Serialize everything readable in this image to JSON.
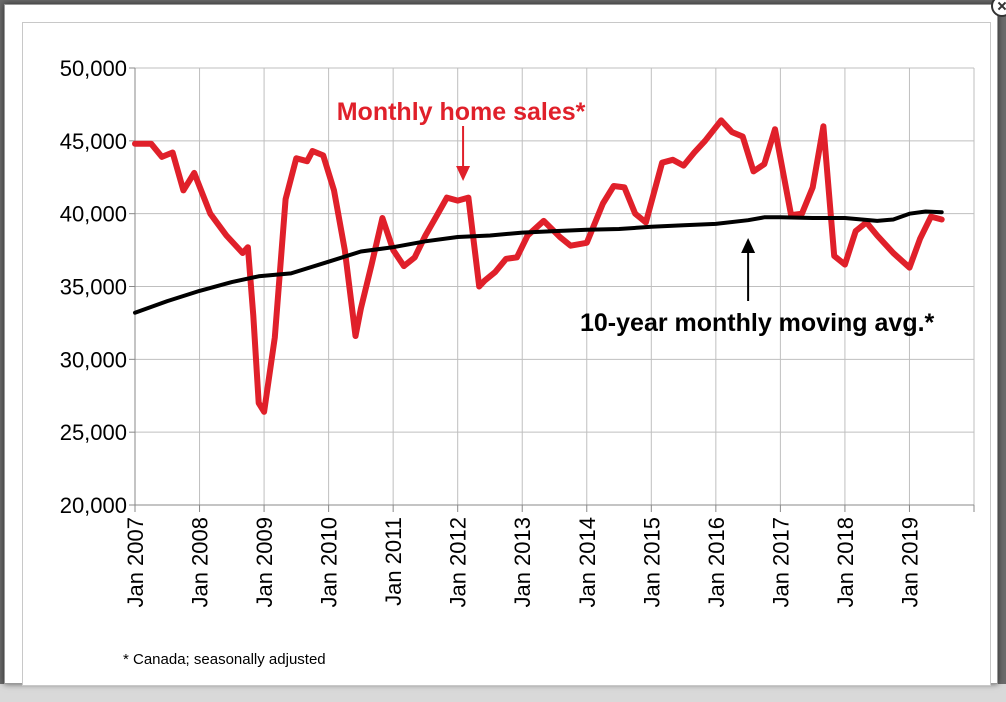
{
  "dialog": {
    "close_label": "close"
  },
  "chart_data": {
    "type": "line",
    "title": "",
    "xlabel": "",
    "ylabel": "",
    "ylim": [
      20000,
      50000
    ],
    "y_ticks": [
      "20,000",
      "25,000",
      "30,000",
      "35,000",
      "40,000",
      "45,000",
      "50,000"
    ],
    "x_ticks": [
      "Jan 2007",
      "Jan 2008",
      "Jan 2009",
      "Jan 2010",
      "Jan 2011",
      "Jan 2012",
      "Jan 2013",
      "Jan 2014",
      "Jan 2015",
      "Jan 2016",
      "Jan 2017",
      "Jan 2018",
      "Jan 2019"
    ],
    "grid": true,
    "colors": {
      "sales": "#e0202a",
      "average": "#000000",
      "grid": "#bfbfbf"
    },
    "series": [
      {
        "name": "Monthly home sales*",
        "x": [
          "2007-01",
          "2007-04",
          "2007-06",
          "2007-08",
          "2007-10",
          "2007-12",
          "2008-03",
          "2008-06",
          "2008-09",
          "2008-10",
          "2008-11",
          "2008-12",
          "2009-01",
          "2009-03",
          "2009-05",
          "2009-07",
          "2009-09",
          "2009-10",
          "2009-12",
          "2010-02",
          "2010-04",
          "2010-06",
          "2010-07",
          "2010-09",
          "2010-11",
          "2011-01",
          "2011-03",
          "2011-05",
          "2011-07",
          "2011-09",
          "2011-11",
          "2012-01",
          "2012-03",
          "2012-05",
          "2012-06",
          "2012-08",
          "2012-10",
          "2012-12",
          "2013-02",
          "2013-05",
          "2013-08",
          "2013-10",
          "2014-01",
          "2014-04",
          "2014-06",
          "2014-08",
          "2014-10",
          "2014-12",
          "2015-03",
          "2015-05",
          "2015-07",
          "2015-09",
          "2015-11",
          "2016-02",
          "2016-04",
          "2016-06",
          "2016-08",
          "2016-10",
          "2016-12",
          "2017-03",
          "2017-05",
          "2017-07",
          "2017-09",
          "2017-11",
          "2018-01",
          "2018-03",
          "2018-05",
          "2018-07",
          "2018-10",
          "2019-01",
          "2019-03",
          "2019-05",
          "2019-07"
        ],
        "values": [
          44800,
          44800,
          43900,
          44200,
          41600,
          42800,
          40000,
          38500,
          37300,
          37700,
          33000,
          27000,
          26400,
          31500,
          41000,
          43800,
          43600,
          44300,
          44000,
          41600,
          37500,
          31600,
          33500,
          36500,
          39700,
          37500,
          36400,
          37000,
          38500,
          39800,
          41100,
          40900,
          41100,
          35000,
          35400,
          36000,
          36900,
          37000,
          38500,
          39500,
          38400,
          37800,
          38000,
          40700,
          41900,
          41800,
          40000,
          39400,
          43500,
          43700,
          43300,
          44200,
          45000,
          46400,
          45600,
          45300,
          42900,
          43400,
          45800,
          39900,
          40000,
          41800,
          46000,
          37100,
          36500,
          38800,
          39400,
          38500,
          37300,
          36300,
          38300,
          39800,
          39600
        ]
      },
      {
        "name": "10-year monthly moving avg.*",
        "x": [
          "2007-01",
          "2007-07",
          "2008-01",
          "2008-07",
          "2008-12",
          "2009-06",
          "2010-01",
          "2010-07",
          "2011-01",
          "2011-07",
          "2012-01",
          "2012-07",
          "2013-01",
          "2013-07",
          "2014-01",
          "2014-07",
          "2015-01",
          "2015-07",
          "2016-01",
          "2016-07",
          "2016-10",
          "2017-01",
          "2017-07",
          "2018-01",
          "2018-07",
          "2018-10",
          "2019-01",
          "2019-04",
          "2019-07"
        ],
        "values": [
          33200,
          34000,
          34700,
          35300,
          35700,
          35900,
          36700,
          37400,
          37700,
          38100,
          38400,
          38500,
          38700,
          38800,
          38900,
          38950,
          39100,
          39200,
          39300,
          39550,
          39750,
          39750,
          39700,
          39700,
          39500,
          39600,
          40000,
          40150,
          40100
        ]
      }
    ],
    "annotations": [
      {
        "text": "Monthly home sales*",
        "target": "2012-02",
        "color": "#e0202a"
      },
      {
        "text": "10-year monthly moving avg.*",
        "target": "2016-07",
        "color": "#000000"
      }
    ],
    "footnote": "* Canada; seasonally adjusted"
  }
}
